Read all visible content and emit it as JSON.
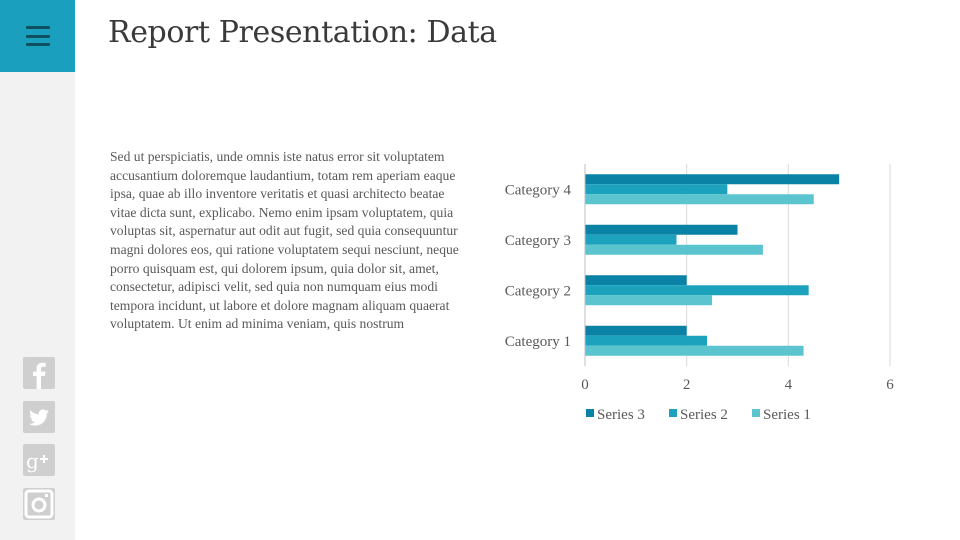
{
  "slide": {
    "title": "Report Presentation: Data",
    "body": "Sed ut perspiciatis, unde omnis iste natus error sit voluptatem accusantium doloremque laudantium, totam rem aperiam eaque ipsa, quae ab illo inventore veritatis et quasi architecto beatae vitae dicta sunt, explicabo. Nemo enim ipsam voluptatem, quia voluptas sit, aspernatur aut odit aut fugit, sed quia consequuntur magni dolores eos, qui ratione voluptatem sequi nesciunt, neque porro quisquam est, qui dolorem ipsum, quia dolor sit, amet, consectetur, adipisci velit, sed quia non numquam eius modi tempora incidunt, ut labore et dolore magnam aliquam quaerat voluptatem. Ut enim ad minima veniam, quis nostrum"
  },
  "sidebar": {
    "accent_color": "#1a9fbf",
    "menu_icon": "hamburger-menu-icon",
    "social_icons": [
      "facebook-icon",
      "twitter-icon",
      "google-plus-icon",
      "instagram-icon"
    ]
  },
  "chart_data": {
    "type": "bar",
    "orientation": "horizontal",
    "categories": [
      "Category 1",
      "Category 2",
      "Category 3",
      "Category 4"
    ],
    "series": [
      {
        "name": "Series 1",
        "values": [
          4.3,
          2.5,
          3.5,
          4.5
        ],
        "color": "#5bc4cf"
      },
      {
        "name": "Series 2",
        "values": [
          2.4,
          4.4,
          1.8,
          2.8
        ],
        "color": "#1da2bd"
      },
      {
        "name": "Series 3",
        "values": [
          2.0,
          2.0,
          3.0,
          5.0
        ],
        "color": "#0a82a6"
      }
    ],
    "xticks": [
      "0",
      "2",
      "4",
      "6"
    ],
    "xlim": [
      0,
      6
    ],
    "grid": true,
    "legend": "bottom",
    "legend_order": [
      "Series 3",
      "Series 2",
      "Series 1"
    ]
  }
}
